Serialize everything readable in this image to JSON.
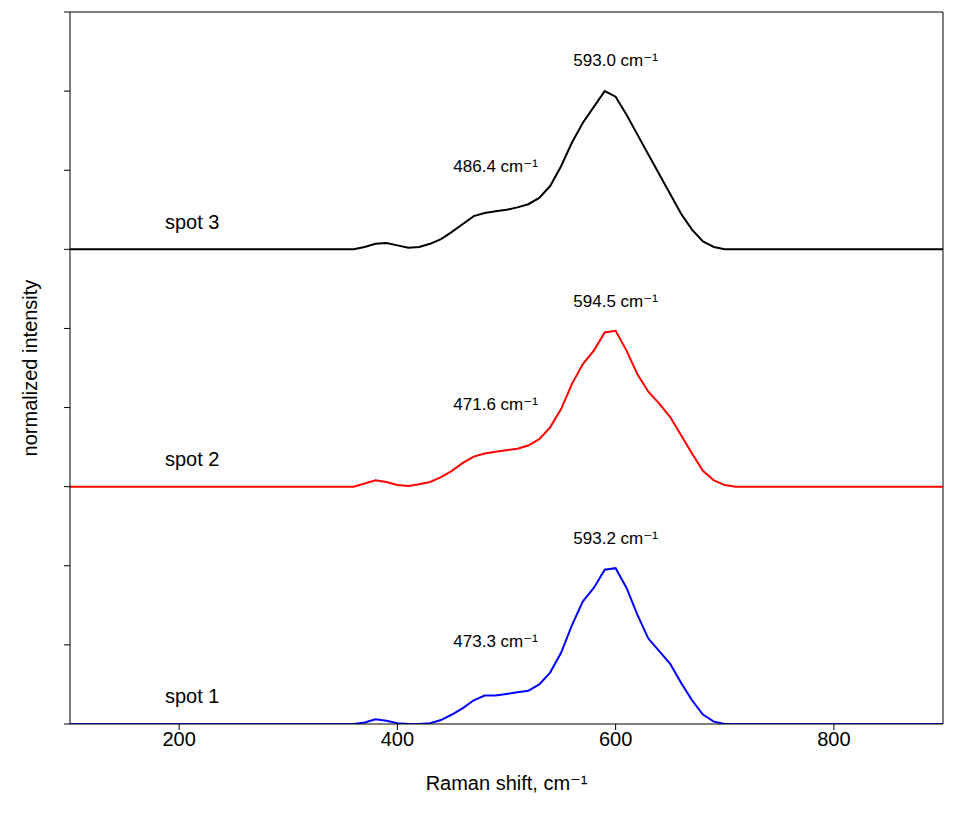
{
  "chart_data": {
    "type": "line",
    "x_label": "Raman shift, cm⁻¹",
    "y_label": "normalized intensity",
    "xlim": [
      100,
      900
    ],
    "xticks": [
      200,
      400,
      600,
      800
    ],
    "ylim": [
      0,
      9
    ],
    "yticks": [
      0,
      1,
      2,
      3,
      4,
      5,
      6,
      7,
      8,
      9
    ],
    "tick_labels": "x",
    "grid": false,
    "x": [
      100,
      110,
      120,
      130,
      140,
      150,
      160,
      170,
      180,
      190,
      200,
      210,
      220,
      230,
      240,
      250,
      260,
      270,
      280,
      290,
      300,
      310,
      320,
      330,
      340,
      350,
      360,
      370,
      380,
      390,
      400,
      410,
      420,
      430,
      440,
      450,
      460,
      470,
      480,
      490,
      500,
      510,
      520,
      530,
      540,
      550,
      560,
      570,
      580,
      590,
      600,
      610,
      620,
      630,
      640,
      650,
      660,
      670,
      680,
      690,
      700,
      710,
      720,
      730,
      740,
      750,
      760,
      770,
      780,
      790,
      800,
      810,
      820,
      830,
      840,
      850,
      860,
      870,
      880,
      890,
      900
    ],
    "series": [
      {
        "name": "spot 1",
        "color": "#0000ff",
        "values": [
          0,
          0,
          0,
          0,
          0,
          0,
          0,
          0,
          0,
          0,
          0,
          0,
          0,
          0,
          0,
          0,
          0,
          0,
          0,
          0,
          0,
          0,
          0,
          0,
          0,
          0,
          0,
          0.02,
          0.06,
          0.04,
          0.01,
          0,
          0,
          0.01,
          0.05,
          0.12,
          0.2,
          0.3,
          0.36,
          0.36,
          0.38,
          0.4,
          0.42,
          0.5,
          0.65,
          0.9,
          1.25,
          1.55,
          1.72,
          1.95,
          1.97,
          1.72,
          1.38,
          1.08,
          0.92,
          0.76,
          0.52,
          0.3,
          0.12,
          0.03,
          0,
          0,
          0,
          0,
          0,
          0,
          0,
          0,
          0,
          0,
          0,
          0,
          0,
          0,
          0,
          0,
          0,
          0,
          0,
          0,
          0
        ]
      },
      {
        "name": "spot 2",
        "color": "#ff0000",
        "values": [
          3,
          3,
          3,
          3,
          3,
          3,
          3,
          3,
          3,
          3,
          3,
          3,
          3,
          3,
          3,
          3,
          3,
          3,
          3,
          3,
          3,
          3,
          3,
          3,
          3,
          3,
          3,
          3.04,
          3.08,
          3.06,
          3.02,
          3.01,
          3.03,
          3.06,
          3.12,
          3.2,
          3.3,
          3.38,
          3.42,
          3.44,
          3.46,
          3.48,
          3.52,
          3.6,
          3.75,
          3.98,
          4.3,
          4.55,
          4.72,
          4.95,
          4.97,
          4.72,
          4.42,
          4.2,
          4.05,
          3.88,
          3.65,
          3.42,
          3.2,
          3.08,
          3.02,
          3,
          3,
          3,
          3,
          3,
          3,
          3,
          3,
          3,
          3,
          3,
          3,
          3,
          3,
          3,
          3,
          3,
          3,
          3,
          3
        ]
      },
      {
        "name": "spot 3",
        "color": "#000000",
        "values": [
          6,
          6,
          6,
          6,
          6,
          6,
          6,
          6,
          6,
          6,
          6,
          6,
          6,
          6,
          6,
          6,
          6,
          6,
          6,
          6,
          6,
          6,
          6,
          6,
          6,
          6,
          6,
          6.03,
          6.07,
          6.08,
          6.05,
          6.02,
          6.03,
          6.07,
          6.13,
          6.22,
          6.32,
          6.42,
          6.46,
          6.48,
          6.5,
          6.53,
          6.57,
          6.65,
          6.8,
          7.05,
          7.35,
          7.6,
          7.8,
          8.0,
          7.93,
          7.7,
          7.45,
          7.2,
          6.95,
          6.7,
          6.45,
          6.25,
          6.1,
          6.03,
          6,
          6,
          6,
          6,
          6,
          6,
          6,
          6,
          6,
          6,
          6,
          6,
          6,
          6,
          6,
          6,
          6,
          6,
          6,
          6,
          6
        ]
      }
    ],
    "annotations": [
      {
        "text": "593.2 cm⁻¹",
        "x": 600,
        "y": 2.35
      },
      {
        "text": "473.3 cm⁻¹",
        "x": 490,
        "y": 1.05
      },
      {
        "text": "594.5 cm⁻¹",
        "x": 600,
        "y": 5.35
      },
      {
        "text": "471.6 cm⁻¹",
        "x": 490,
        "y": 4.05
      },
      {
        "text": "593.0 cm⁻¹",
        "x": 600,
        "y": 8.4
      },
      {
        "text": "486.4 cm⁻¹",
        "x": 490,
        "y": 7.05
      }
    ]
  }
}
